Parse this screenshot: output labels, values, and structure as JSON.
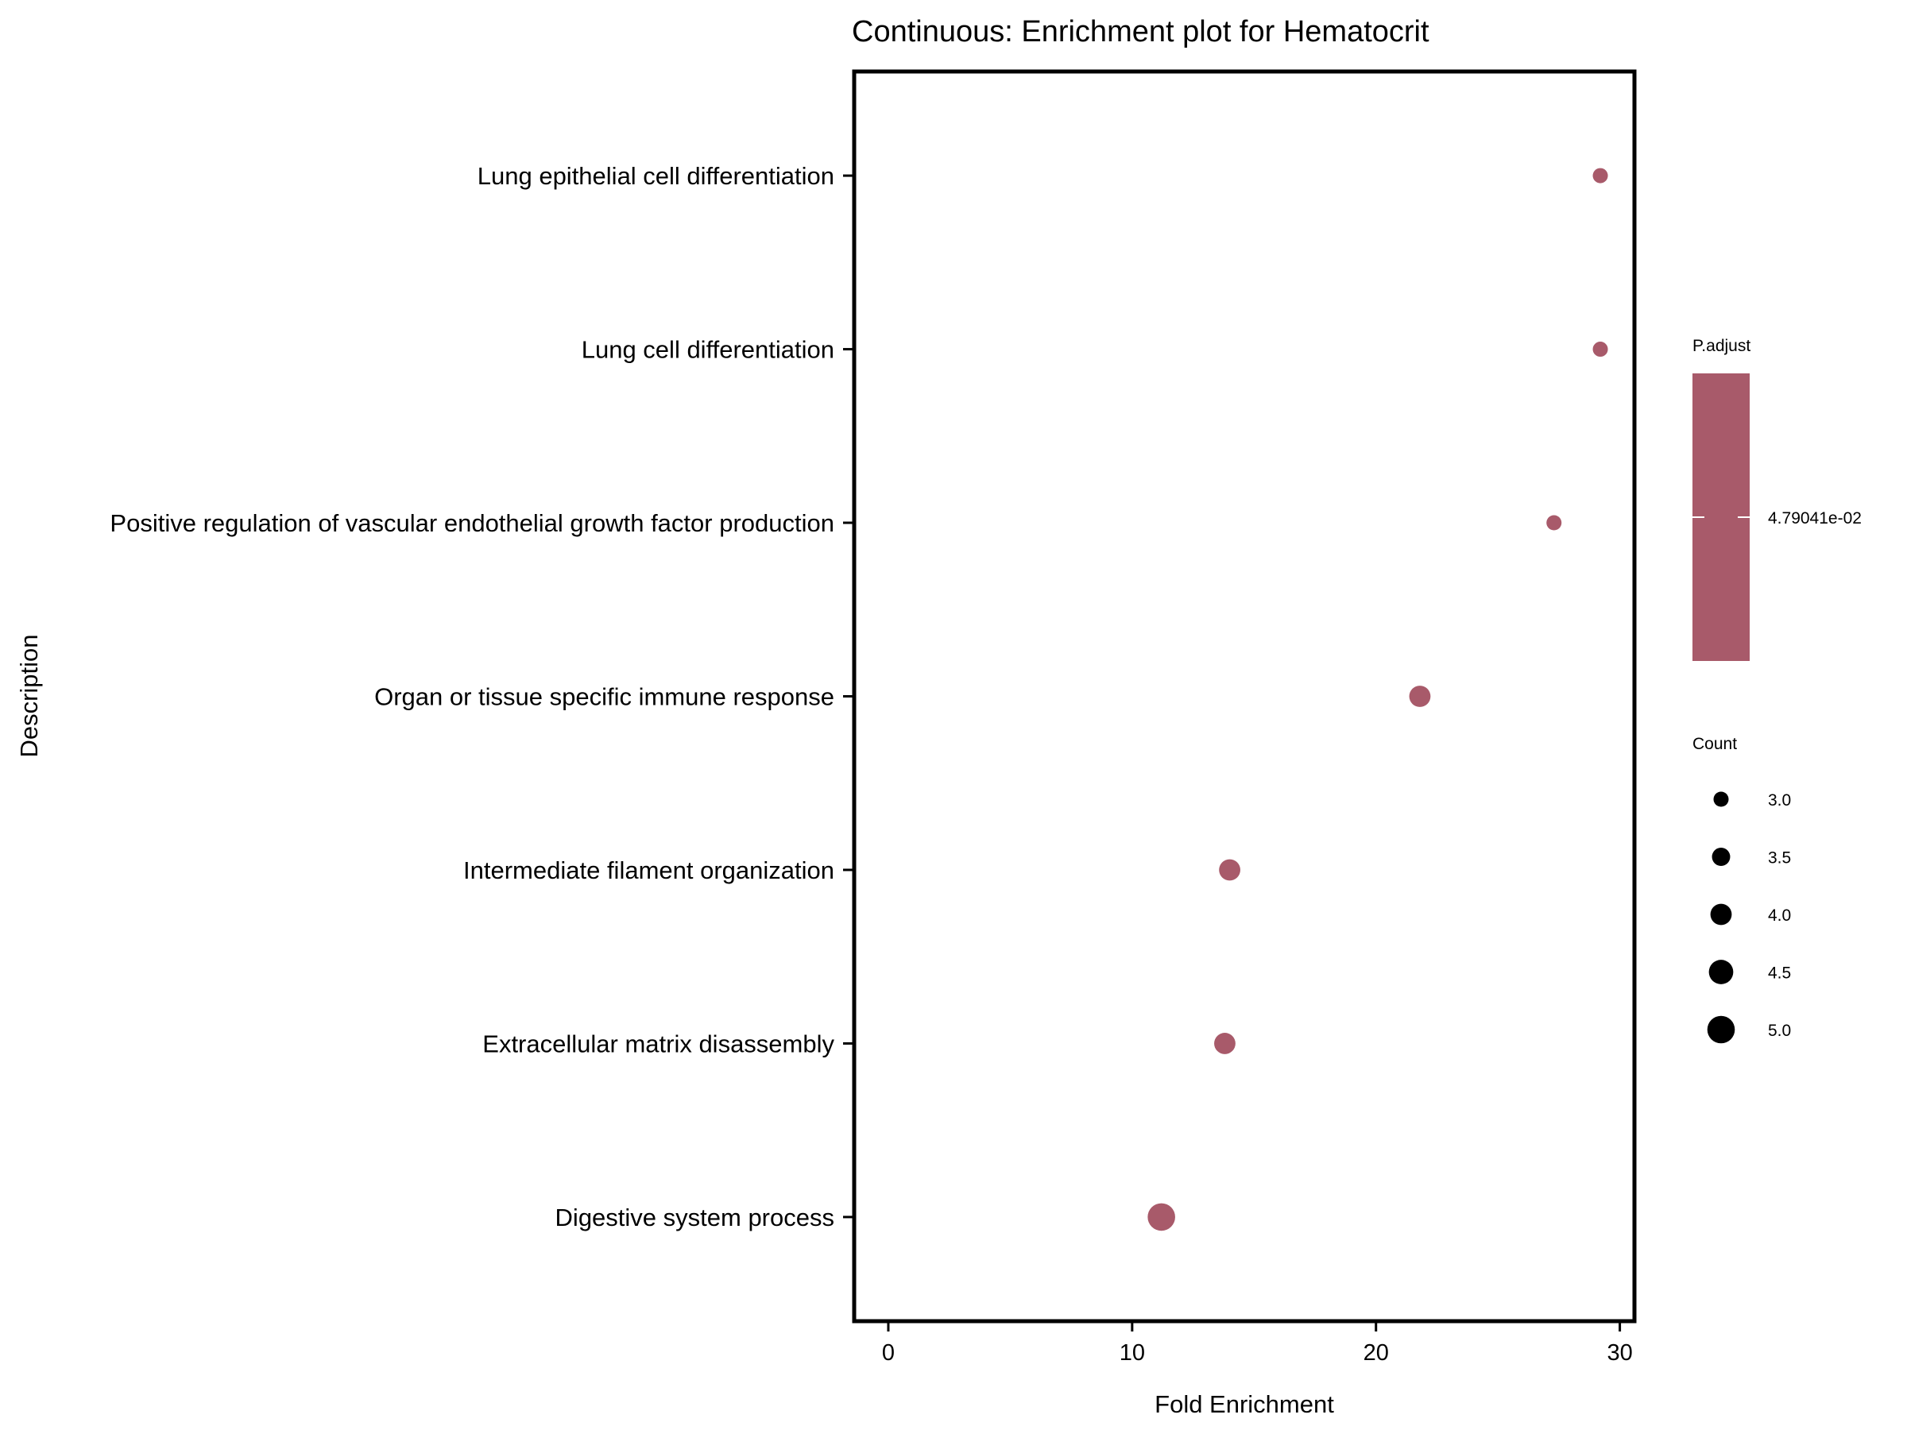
{
  "chart_data": {
    "type": "scatter",
    "title": "Continuous: Enrichment plot for Hematocrit",
    "xlabel": "Fold Enrichment",
    "ylabel": "Description",
    "xlim": [
      -1.4,
      30.6
    ],
    "xticks": [
      0,
      10,
      20,
      30
    ],
    "grid": false,
    "categories": [
      "Lung epithelial cell differentiation",
      "Lung cell differentiation",
      "Positive regulation of vascular endothelial growth factor production",
      "Organ or tissue specific immune response",
      "Intermediate filament organization",
      "Extracellular matrix disassembly",
      "Digestive system process"
    ],
    "points": [
      {
        "description": "Lung epithelial cell differentiation",
        "fold_enrichment": 29.2,
        "count": 3
      },
      {
        "description": "Lung cell differentiation",
        "fold_enrichment": 29.2,
        "count": 3
      },
      {
        "description": "Positive regulation of vascular endothelial growth factor production",
        "fold_enrichment": 27.3,
        "count": 3
      },
      {
        "description": "Organ or tissue specific immune response",
        "fold_enrichment": 21.8,
        "count": 4
      },
      {
        "description": "Intermediate filament organization",
        "fold_enrichment": 14.0,
        "count": 4
      },
      {
        "description": "Extracellular matrix disassembly",
        "fold_enrichment": 13.8,
        "count": 4
      },
      {
        "description": "Digestive system process",
        "fold_enrichment": 11.2,
        "count": 5
      }
    ],
    "point_color": "#a85a6a",
    "legend_position": "right",
    "color_legend": {
      "title": "P.adjust",
      "label": "4.79041e-02",
      "color": "#a85a6a"
    },
    "size_legend": {
      "title": "Count",
      "values": [
        3.0,
        3.5,
        4.0,
        4.5,
        5.0
      ],
      "labels": [
        "3.0",
        "3.5",
        "4.0",
        "4.5",
        "5.0"
      ],
      "color": "#000000"
    }
  }
}
